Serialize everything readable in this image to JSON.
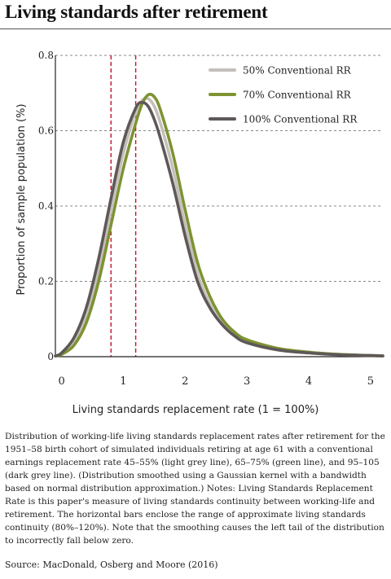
{
  "title": "Living standards after retirement",
  "caption": "Distribution of working-life living standards replacement rates after retirement for the 1951–58 birth cohort of simulated individuals retiring at age 61 with a conventional earnings replacement rate 45–55% (light grey line), 65–75% (green line), and 95–105 (dark grey line). (Distribution smoothed using a Gaussian kernel with a bandwidth based on normal distribution approximation.) Notes: Living Standards Replacement Rate is this paper's measure of living standards continuity between working-life and retirement. The horizontal bars enclose the range of approximate living standards continuity (80%–120%). Note that the smoothing causes the left tail of the distribution to incorrectly fall below zero.",
  "source": "Source: MacDonald, Osberg and Moore (2016)",
  "chart_data": {
    "type": "line",
    "xlabel": "Living standards replacement rate (1 = 100%)",
    "ylabel": "Proportion of sample population (%)",
    "xlim": [
      -0.1,
      5.2
    ],
    "ylim": [
      0,
      0.8
    ],
    "x_ticks": [
      "0",
      "1",
      "2",
      "3",
      "4",
      "5"
    ],
    "y_ticks": [
      "0",
      "0.2",
      "0.4",
      "0.6",
      "0.8"
    ],
    "grid": "horizontal dashed",
    "legend_position": "top-right",
    "reference_lines_x": [
      0.8,
      1.2
    ],
    "reference_line_color": "#c8102e",
    "series": [
      {
        "name": "50% Conventional RR",
        "color": "#c5bfbb",
        "x": [
          -0.1,
          0.0,
          0.2,
          0.4,
          0.6,
          0.8,
          1.0,
          1.2,
          1.3,
          1.4,
          1.5,
          1.6,
          1.8,
          2.0,
          2.2,
          2.4,
          2.6,
          2.8,
          3.0,
          3.5,
          4.0,
          4.5,
          5.0,
          5.2
        ],
        "y": [
          0.002,
          0.008,
          0.04,
          0.11,
          0.23,
          0.39,
          0.54,
          0.65,
          0.68,
          0.685,
          0.665,
          0.62,
          0.5,
          0.35,
          0.22,
          0.14,
          0.09,
          0.06,
          0.04,
          0.02,
          0.012,
          0.006,
          0.003,
          0.002
        ]
      },
      {
        "name": "70% Conventional RR",
        "color": "#7d9332",
        "x": [
          -0.1,
          0.0,
          0.2,
          0.4,
          0.6,
          0.8,
          1.0,
          1.2,
          1.3,
          1.4,
          1.5,
          1.6,
          1.8,
          2.0,
          2.2,
          2.4,
          2.6,
          2.8,
          3.0,
          3.5,
          4.0,
          4.5,
          5.0,
          5.2
        ],
        "y": [
          0.002,
          0.006,
          0.03,
          0.09,
          0.2,
          0.35,
          0.5,
          0.62,
          0.67,
          0.695,
          0.69,
          0.655,
          0.54,
          0.39,
          0.25,
          0.16,
          0.1,
          0.065,
          0.045,
          0.022,
          0.012,
          0.006,
          0.003,
          0.002
        ]
      },
      {
        "name": "100% Conventional RR",
        "color": "#5e5858",
        "x": [
          -0.1,
          0.0,
          0.2,
          0.4,
          0.6,
          0.8,
          1.0,
          1.2,
          1.3,
          1.4,
          1.5,
          1.6,
          1.8,
          2.0,
          2.2,
          2.4,
          2.6,
          2.8,
          3.0,
          3.5,
          4.0,
          4.5,
          5.0,
          5.2
        ],
        "y": [
          0.002,
          0.01,
          0.05,
          0.13,
          0.26,
          0.42,
          0.57,
          0.66,
          0.675,
          0.665,
          0.63,
          0.58,
          0.46,
          0.32,
          0.2,
          0.13,
          0.085,
          0.055,
          0.037,
          0.018,
          0.01,
          0.005,
          0.003,
          0.002
        ]
      }
    ]
  }
}
